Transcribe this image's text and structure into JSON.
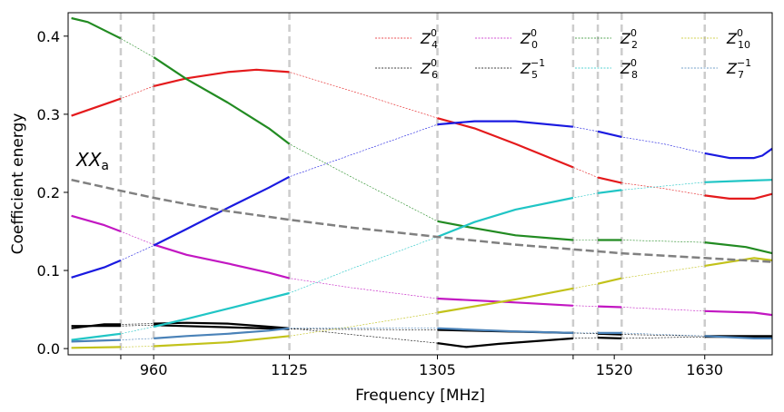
{
  "chart_data": {
    "type": "line",
    "xlabel": "Frequency [MHz]",
    "ylabel": "Coefficient energy",
    "annotation": {
      "main": "XX",
      "sub": "a"
    },
    "xlim": [
      856,
      1712
    ],
    "ylim": [
      -0.008,
      0.43
    ],
    "xticks": [
      {
        "value": 920,
        "label": ""
      },
      {
        "value": 960,
        "label": "960"
      },
      {
        "value": 1125,
        "label": "1125"
      },
      {
        "value": 1305,
        "label": "1305"
      },
      {
        "value": 1470,
        "label": ""
      },
      {
        "value": 1520,
        "label": "1520"
      },
      {
        "value": 1630,
        "label": "1630"
      }
    ],
    "yticks": [
      {
        "value": 0.0,
        "label": "0.0"
      },
      {
        "value": 0.1,
        "label": "0.1"
      },
      {
        "value": 0.2,
        "label": "0.2"
      },
      {
        "value": 0.3,
        "label": "0.3"
      },
      {
        "value": 0.4,
        "label": "0.4"
      }
    ],
    "vlines": [
      920,
      960,
      1125,
      1305,
      1470,
      1500,
      1529,
      1630
    ],
    "legend": {
      "placement": "top-right",
      "columns": 4
    },
    "measured_bands": [
      [
        860,
        920
      ],
      [
        960,
        1125
      ],
      [
        1305,
        1470
      ],
      [
        1500,
        1529
      ],
      [
        1630,
        1712
      ]
    ],
    "series": [
      {
        "name": "Z",
        "sup": "0",
        "sub": "4",
        "color": "#e41a1c",
        "x": [
          860,
          920,
          960,
          1000,
          1050,
          1085,
          1125,
          1200,
          1305,
          1350,
          1400,
          1470,
          1500,
          1529,
          1580,
          1630,
          1660,
          1690,
          1712
        ],
        "y": [
          0.298,
          0.32,
          0.336,
          0.346,
          0.354,
          0.357,
          0.354,
          0.33,
          0.295,
          0.282,
          0.262,
          0.232,
          0.219,
          0.212,
          0.205,
          0.196,
          0.192,
          0.192,
          0.198
        ]
      },
      {
        "name": "Z",
        "sup": "0",
        "sub": "6",
        "color": "#000000",
        "x": [
          860,
          900,
          920,
          960,
          1000,
          1050,
          1100,
          1125,
          1200,
          1305,
          1340,
          1380,
          1470,
          1500,
          1529,
          1630,
          1690,
          1712
        ],
        "y": [
          0.026,
          0.031,
          0.031,
          0.032,
          0.033,
          0.032,
          0.028,
          0.026,
          0.018,
          0.007,
          0.002,
          0.006,
          0.013,
          0.014,
          0.013,
          0.015,
          0.015,
          0.015
        ]
      },
      {
        "name": "Z",
        "sup": "0",
        "sub": "0",
        "color": "#c217c2",
        "x": [
          860,
          900,
          920,
          960,
          1000,
          1050,
          1100,
          1125,
          1200,
          1305,
          1400,
          1470,
          1500,
          1529,
          1630,
          1690,
          1712
        ],
        "y": [
          0.17,
          0.158,
          0.15,
          0.133,
          0.12,
          0.109,
          0.097,
          0.09,
          0.078,
          0.064,
          0.059,
          0.055,
          0.054,
          0.053,
          0.048,
          0.046,
          0.043
        ]
      },
      {
        "name": "Z",
        "sup": "−1",
        "sub": "5",
        "color": "#000000",
        "x": [
          860,
          920,
          960,
          1125,
          1305,
          1470,
          1500,
          1529,
          1630,
          1712
        ],
        "y": [
          0.029,
          0.029,
          0.03,
          0.025,
          0.024,
          0.02,
          0.019,
          0.018,
          0.016,
          0.016
        ]
      },
      {
        "name": "Z",
        "sup": "0",
        "sub": "2",
        "color": "#228b22",
        "x": [
          860,
          880,
          920,
          960,
          1000,
          1050,
          1100,
          1125,
          1200,
          1305,
          1340,
          1400,
          1470,
          1500,
          1529,
          1630,
          1680,
          1712
        ],
        "y": [
          0.423,
          0.418,
          0.397,
          0.373,
          0.345,
          0.315,
          0.282,
          0.262,
          0.22,
          0.163,
          0.156,
          0.145,
          0.139,
          0.139,
          0.139,
          0.136,
          0.13,
          0.122
        ]
      },
      {
        "name": "Z",
        "sup": "0",
        "sub": "8",
        "color": "#20c5c5",
        "x": [
          860,
          920,
          960,
          1000,
          1050,
          1125,
          1200,
          1305,
          1350,
          1400,
          1470,
          1500,
          1529,
          1630,
          1680,
          1712
        ],
        "y": [
          0.011,
          0.019,
          0.028,
          0.038,
          0.051,
          0.071,
          0.102,
          0.143,
          0.162,
          0.178,
          0.193,
          0.199,
          0.203,
          0.213,
          0.215,
          0.216
        ]
      },
      {
        "name": "Z",
        "sup": "0",
        "sub": "10",
        "color": "#c2c21a",
        "x": [
          860,
          920,
          960,
          1050,
          1125,
          1200,
          1305,
          1400,
          1470,
          1500,
          1529,
          1630,
          1690,
          1712
        ],
        "y": [
          0.001,
          0.002,
          0.003,
          0.008,
          0.016,
          0.028,
          0.046,
          0.063,
          0.077,
          0.083,
          0.09,
          0.106,
          0.116,
          0.113
        ]
      },
      {
        "name": "Z",
        "sup": "−1",
        "sub": "7",
        "color": "#4a82b8",
        "x": [
          860,
          920,
          960,
          1000,
          1050,
          1100,
          1125,
          1200,
          1305,
          1350,
          1400,
          1470,
          1500,
          1529,
          1630,
          1690,
          1712
        ],
        "y": [
          0.009,
          0.011,
          0.013,
          0.016,
          0.019,
          0.023,
          0.026,
          0.026,
          0.026,
          0.024,
          0.022,
          0.02,
          0.02,
          0.02,
          0.016,
          0.013,
          0.013
        ]
      },
      {
        "name": "",
        "color": "#1a1ae0",
        "x": [
          860,
          900,
          920,
          960,
          1000,
          1050,
          1100,
          1125,
          1200,
          1305,
          1350,
          1400,
          1470,
          1500,
          1529,
          1580,
          1630,
          1660,
          1690,
          1700,
          1712
        ],
        "y": [
          0.091,
          0.104,
          0.113,
          0.132,
          0.153,
          0.18,
          0.206,
          0.22,
          0.248,
          0.287,
          0.291,
          0.291,
          0.284,
          0.278,
          0.271,
          0.262,
          0.25,
          0.244,
          0.244,
          0.247,
          0.256
        ]
      },
      {
        "name": "",
        "color": "#808080",
        "dashed": true,
        "x": [
          860,
          920,
          960,
          1000,
          1050,
          1125,
          1200,
          1305,
          1400,
          1470,
          1529,
          1630,
          1712
        ],
        "y": [
          0.216,
          0.202,
          0.193,
          0.185,
          0.176,
          0.165,
          0.155,
          0.143,
          0.133,
          0.127,
          0.122,
          0.116,
          0.111
        ]
      }
    ]
  }
}
